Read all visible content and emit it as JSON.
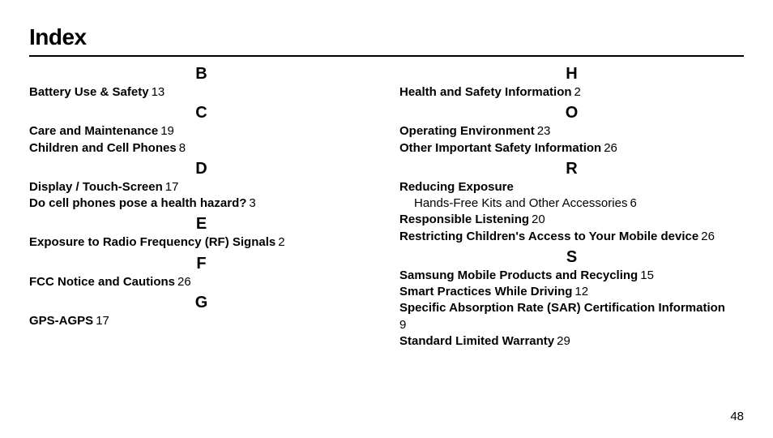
{
  "title": "Index",
  "pageNumber": "48",
  "col1": {
    "B": {
      "letter": "B",
      "e0_term": "Battery Use & Safety",
      "e0_page": "13"
    },
    "C": {
      "letter": "C",
      "e0_term": "Care and Maintenance",
      "e0_page": "19",
      "e1_term": "Children and Cell Phones",
      "e1_page": "8"
    },
    "D": {
      "letter": "D",
      "e0_term": "Display / Touch-Screen",
      "e0_page": "17",
      "e1_term": "Do cell phones pose a health hazard?",
      "e1_page": "3"
    },
    "E": {
      "letter": "E",
      "e0_term": "Exposure to Radio Frequency (RF) Signals",
      "e0_page": "2"
    },
    "F": {
      "letter": "F",
      "e0_term": "FCC Notice and Cautions",
      "e0_page": "26"
    },
    "G": {
      "letter": "G",
      "e0_term": "GPS-AGPS",
      "e0_page": "17"
    }
  },
  "col2": {
    "H": {
      "letter": "H",
      "e0_term": "Health and Safety Information",
      "e0_page": "2"
    },
    "O": {
      "letter": "O",
      "e0_term": "Operating Environment",
      "e0_page": "23",
      "e1_term": "Other Important Safety Information",
      "e1_page": "26"
    },
    "R": {
      "letter": "R",
      "e0_term": "Reducing Exposure",
      "e0_sub_term": "Hands-Free Kits and Other Accessories",
      "e0_sub_page": "6",
      "e1_term": "Responsible Listening",
      "e1_page": "20",
      "e2_term": "Restricting Children's Access to Your Mobile device",
      "e2_page": "26"
    },
    "S": {
      "letter": "S",
      "e0_term": "Samsung Mobile Products and Recycling",
      "e0_page": "15",
      "e1_term": "Smart Practices While Driving",
      "e1_page": "12",
      "e2_term": "Specific Absorption Rate (SAR) Certification Information",
      "e2_page": "9",
      "e3_term": "Standard Limited Warranty",
      "e3_page": "29"
    }
  }
}
